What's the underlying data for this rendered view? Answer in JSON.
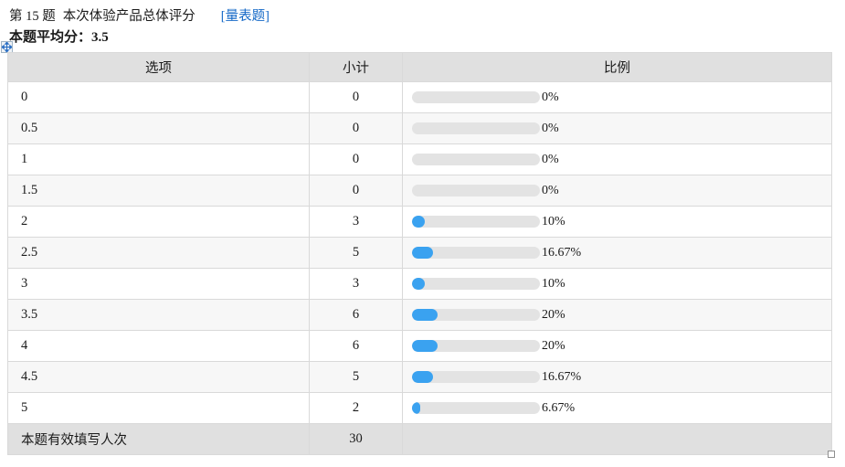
{
  "header": {
    "question_label": "第 15 题",
    "question_title": "本次体验产品总体评分",
    "type_tag": "[量表题]",
    "average_text": "本题平均分：3.5"
  },
  "table": {
    "headers": [
      "选项",
      "小计",
      "比例"
    ],
    "rows": [
      {
        "option": "0",
        "count": "0",
        "percent": 0,
        "percent_label": "0%"
      },
      {
        "option": "0.5",
        "count": "0",
        "percent": 0,
        "percent_label": "0%"
      },
      {
        "option": "1",
        "count": "0",
        "percent": 0,
        "percent_label": "0%"
      },
      {
        "option": "1.5",
        "count": "0",
        "percent": 0,
        "percent_label": "0%"
      },
      {
        "option": "2",
        "count": "3",
        "percent": 10,
        "percent_label": "10%"
      },
      {
        "option": "2.5",
        "count": "5",
        "percent": 16.67,
        "percent_label": "16.67%"
      },
      {
        "option": "3",
        "count": "3",
        "percent": 10,
        "percent_label": "10%"
      },
      {
        "option": "3.5",
        "count": "6",
        "percent": 20,
        "percent_label": "20%"
      },
      {
        "option": "4",
        "count": "6",
        "percent": 20,
        "percent_label": "20%"
      },
      {
        "option": "4.5",
        "count": "5",
        "percent": 16.67,
        "percent_label": "16.67%"
      },
      {
        "option": "5",
        "count": "2",
        "percent": 6.67,
        "percent_label": "6.67%"
      }
    ],
    "footer": {
      "label": "本题有效填写人次",
      "count": "30"
    }
  },
  "chart_data": {
    "type": "table",
    "title": "第 15 题 本次体验产品总体评分 [量表题]",
    "average": 3.5,
    "categories": [
      "0",
      "0.5",
      "1",
      "1.5",
      "2",
      "2.5",
      "3",
      "3.5",
      "4",
      "4.5",
      "5"
    ],
    "counts": [
      0,
      0,
      0,
      0,
      3,
      5,
      3,
      6,
      6,
      5,
      2
    ],
    "percents": [
      0,
      0,
      0,
      0,
      10,
      16.67,
      10,
      20,
      20,
      16.67,
      6.67
    ],
    "total_responses": 30
  },
  "icons": {
    "move_icon": "move-handle-icon",
    "resize_icon": "resize-handle-icon"
  },
  "colors": {
    "bar_fill": "#3aa2f0",
    "bar_track": "#e3e3e3",
    "header_bg": "#e0e0e0",
    "alt_row_bg": "#f7f7f7",
    "border": "#d9d9d9",
    "link_blue": "#1569c7"
  }
}
